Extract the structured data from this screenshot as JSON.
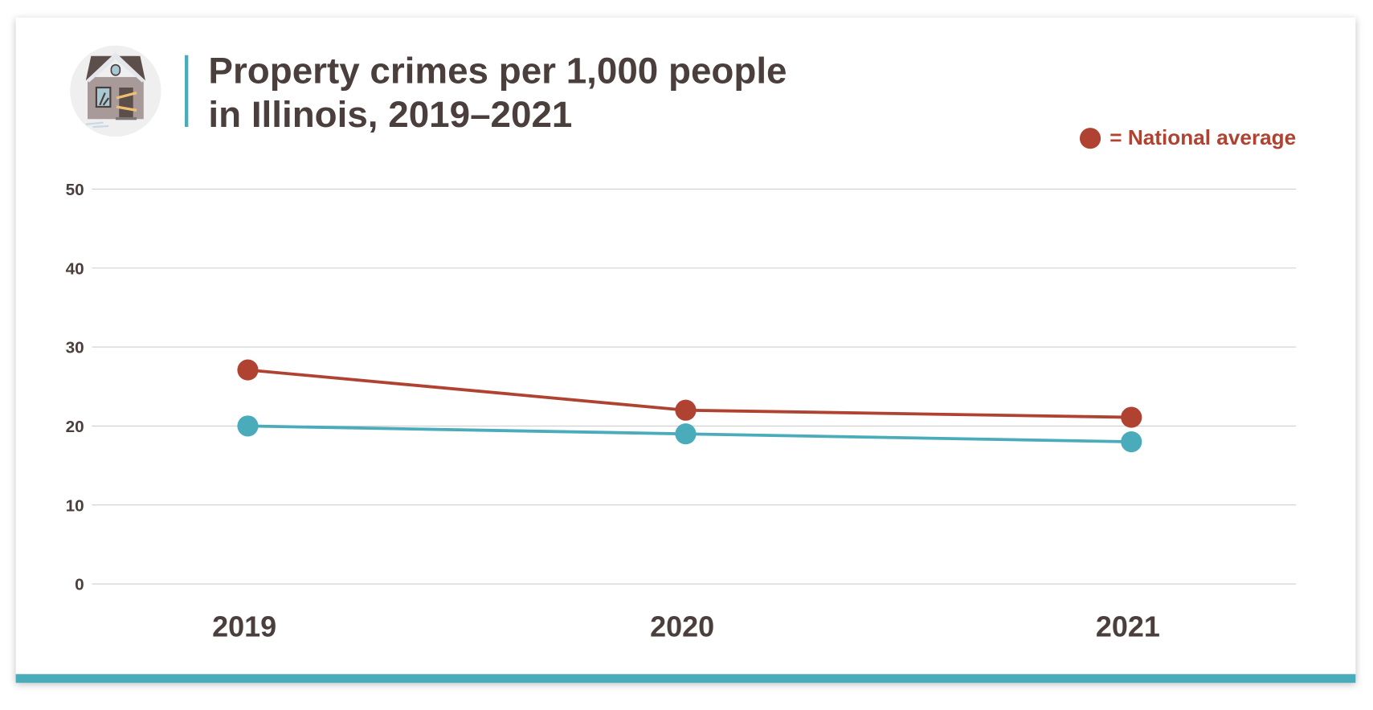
{
  "chart_data": {
    "type": "line",
    "title": "Property crimes per 1,000 people in Illinois, 2019–2021",
    "title_lines": [
      "Property crimes per 1,000 people",
      "in Illinois, 2019–2021"
    ],
    "categories": [
      "2019",
      "2020",
      "2021"
    ],
    "ylim": [
      0,
      50
    ],
    "yticks": [
      0,
      10,
      20,
      30,
      40,
      50
    ],
    "grid": true,
    "legend_position": "top-right",
    "legend_label": "= National average",
    "series": [
      {
        "key": "illinois",
        "color": "#4aacba",
        "values": [
          20,
          19,
          18
        ]
      },
      {
        "key": "national",
        "name": "National average",
        "color": "#b04231",
        "values": [
          27.1,
          22,
          21.1
        ]
      }
    ]
  },
  "icon": "boarded-house-icon",
  "colors": {
    "accent": "#4aacba",
    "national": "#b04231",
    "text": "#4a3f3c"
  }
}
